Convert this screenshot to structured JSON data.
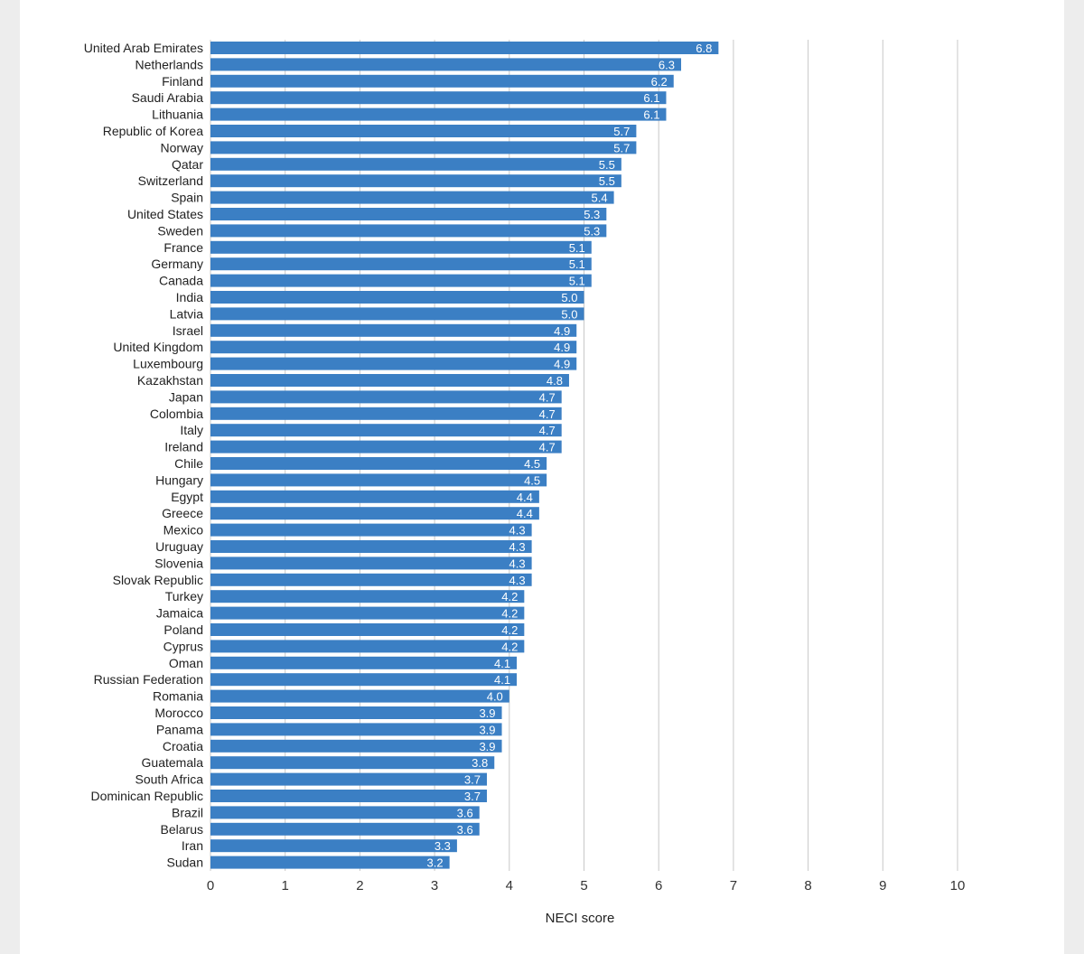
{
  "colors": {
    "bar": "#3b7fc4",
    "grid": "#c8c8c8",
    "text": "#222222"
  },
  "chart_data": {
    "type": "bar",
    "orientation": "horizontal",
    "xlabel": "NECI score",
    "xlim": [
      0,
      10
    ],
    "xticks": [
      0,
      1,
      2,
      3,
      4,
      5,
      6,
      7,
      8,
      9,
      10
    ],
    "grid": true,
    "data_labels": true,
    "categories": [
      "United Arab Emirates",
      "Netherlands",
      "Finland",
      "Saudi Arabia",
      "Lithuania",
      "Republic of Korea",
      "Norway",
      "Qatar",
      "Switzerland",
      "Spain",
      "United States",
      "Sweden",
      "France",
      "Germany",
      "Canada",
      "India",
      "Latvia",
      "Israel",
      "United Kingdom",
      "Luxembourg",
      "Kazakhstan",
      "Japan",
      "Colombia",
      "Italy",
      "Ireland",
      "Chile",
      "Hungary",
      "Egypt",
      "Greece",
      "Mexico",
      "Uruguay",
      "Slovenia",
      "Slovak Republic",
      "Turkey",
      "Jamaica",
      "Poland",
      "Cyprus",
      "Oman",
      "Russian Federation",
      "Romania",
      "Morocco",
      "Panama",
      "Croatia",
      "Guatemala",
      "South Africa",
      "Dominican Republic",
      "Brazil",
      "Belarus",
      "Iran",
      "Sudan"
    ],
    "values": [
      6.8,
      6.3,
      6.2,
      6.1,
      6.1,
      5.7,
      5.7,
      5.5,
      5.5,
      5.4,
      5.3,
      5.3,
      5.1,
      5.1,
      5.1,
      5.0,
      5.0,
      4.9,
      4.9,
      4.9,
      4.8,
      4.7,
      4.7,
      4.7,
      4.7,
      4.5,
      4.5,
      4.4,
      4.4,
      4.3,
      4.3,
      4.3,
      4.3,
      4.2,
      4.2,
      4.2,
      4.2,
      4.1,
      4.1,
      4.0,
      3.9,
      3.9,
      3.9,
      3.8,
      3.7,
      3.7,
      3.6,
      3.6,
      3.3,
      3.2
    ]
  }
}
